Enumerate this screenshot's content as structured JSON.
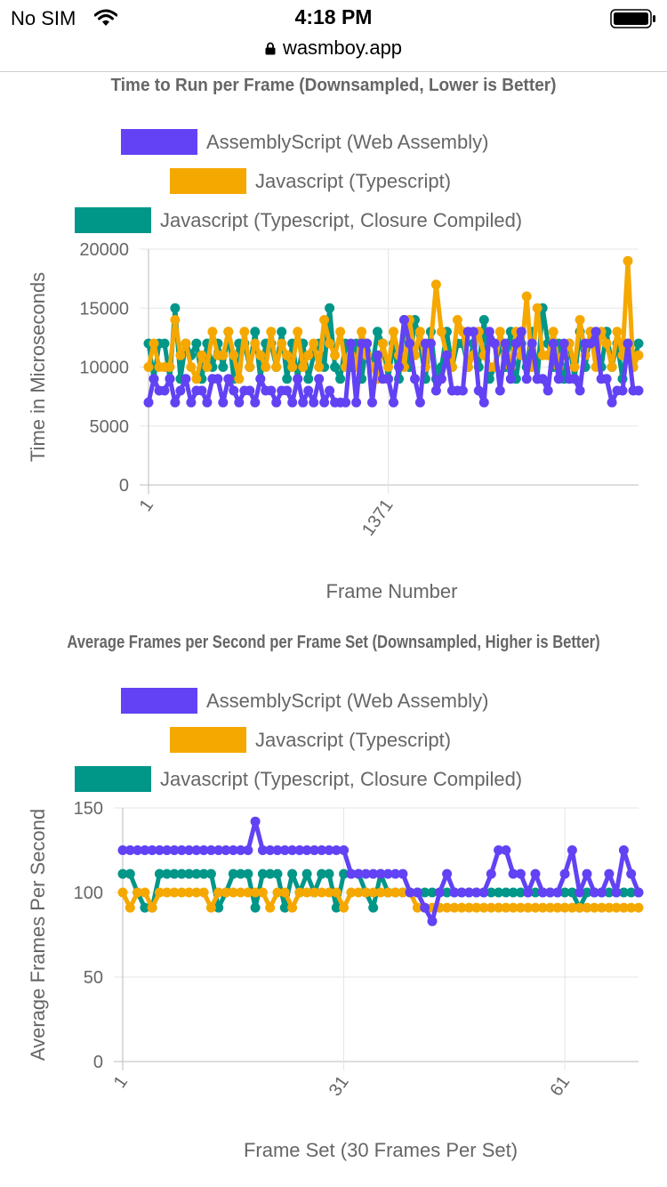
{
  "status_bar": {
    "carrier": "No SIM",
    "time": "4:18 PM",
    "url": "wasmboy.app",
    "icons": [
      "wifi-icon",
      "lock-icon",
      "battery-icon"
    ]
  },
  "colors": {
    "series": [
      "#6242f4",
      "#f5a800",
      "#009688"
    ],
    "grid": "#e5e5e5",
    "text": "#666666"
  },
  "chart_data": [
    {
      "type": "line",
      "title": "Time to Run per Frame (Downsampled, Lower is Better)",
      "xlabel": "Frame Number",
      "ylabel": "Time in Microseconds",
      "ylim": [
        0,
        20000
      ],
      "yticks": [
        0,
        5000,
        10000,
        15000,
        20000
      ],
      "x_tick_labels": [
        {
          "label": "1",
          "index": 0
        },
        {
          "label": "1371",
          "index": 45
        }
      ],
      "grid": true,
      "legend_position": "top",
      "series": [
        {
          "name": "AssemblyScript (Web Assembly)",
          "values": [
            7000,
            9000,
            8000,
            8000,
            9000,
            7000,
            8000,
            9000,
            7000,
            8000,
            8000,
            7000,
            9000,
            9000,
            7000,
            9000,
            8000,
            7000,
            8000,
            8000,
            7000,
            9000,
            8000,
            8000,
            7000,
            8000,
            8000,
            7000,
            9000,
            7000,
            8000,
            7000,
            9000,
            7000,
            8000,
            7000,
            7000,
            7000,
            12000,
            7000,
            12000,
            12000,
            7000,
            11000,
            9000,
            9000,
            7000,
            10000,
            14000,
            12000,
            9000,
            7000,
            12000,
            12000,
            8000,
            9000,
            11000,
            8000,
            8000,
            8000,
            13000,
            13000,
            8000,
            7000,
            13000,
            12000,
            8000,
            12000,
            9000,
            12000,
            13000,
            9000,
            12000,
            9000,
            9000,
            8000,
            12000,
            9000,
            12000,
            9000,
            9000,
            8000,
            12000,
            12000,
            13000,
            9000,
            9000,
            7000,
            8000,
            8000,
            12000,
            8000,
            8000
          ]
        },
        {
          "name": "Javascript (Typescript)",
          "values": [
            10000,
            12000,
            10000,
            10000,
            10000,
            14000,
            11000,
            12000,
            10000,
            9000,
            11000,
            10000,
            13000,
            11000,
            11000,
            13000,
            11000,
            9000,
            13000,
            10000,
            12000,
            11000,
            10000,
            13000,
            10000,
            12000,
            11000,
            10000,
            13000,
            10000,
            11000,
            12000,
            10000,
            14000,
            12000,
            11000,
            13000,
            10000,
            11000,
            10000,
            13000,
            11000,
            10000,
            9000,
            12000,
            10000,
            13000,
            11000,
            10000,
            14000,
            11000,
            13000,
            10000,
            12000,
            17000,
            13000,
            11000,
            10000,
            14000,
            13000,
            10000,
            11000,
            13000,
            11000,
            10000,
            10000,
            13000,
            11000,
            10000,
            13000,
            11000,
            16000,
            10000,
            15000,
            11000,
            11000,
            13000,
            10000,
            11000,
            12000,
            10000,
            14000,
            11000,
            13000,
            10000,
            13000,
            12000,
            10000,
            13000,
            11000,
            19000,
            10000,
            11000
          ]
        },
        {
          "name": "Javascript (Typescript, Closure Compiled)",
          "values": [
            12000,
            9000,
            12000,
            12000,
            9000,
            15000,
            9000,
            12000,
            11000,
            12000,
            9000,
            12000,
            10000,
            12000,
            10000,
            13000,
            9000,
            12000,
            12000,
            10000,
            13000,
            9000,
            12000,
            12000,
            10000,
            13000,
            9000,
            12000,
            9000,
            12000,
            9000,
            11000,
            12000,
            10000,
            15000,
            10000,
            9000,
            12000,
            10000,
            12000,
            9000,
            12000,
            10000,
            13000,
            12000,
            9000,
            12000,
            9000,
            14000,
            10000,
            14000,
            12000,
            9000,
            13000,
            9000,
            10000,
            13000,
            10000,
            12000,
            12000,
            10000,
            12000,
            10000,
            14000,
            9000,
            10000,
            12000,
            10000,
            13000,
            9000,
            12000,
            10000,
            13000,
            9000,
            15000,
            12000,
            10000,
            12000,
            9000,
            12000,
            9000,
            13000,
            10000,
            13000,
            12000,
            10000,
            13000,
            10000,
            12000,
            9000,
            12000,
            10000,
            12000
          ]
        }
      ]
    },
    {
      "type": "line",
      "title": "Average Frames per Second per Frame Set (Downsampled, Higher is Better)",
      "xlabel": "Frame Set (30 Frames Per Set)",
      "ylabel": "Average Frames Per Second",
      "ylim": [
        0,
        150
      ],
      "yticks": [
        0,
        50,
        100,
        150
      ],
      "x_tick_labels": [
        {
          "label": "1",
          "index": 0
        },
        {
          "label": "31",
          "index": 30
        },
        {
          "label": "61",
          "index": 60
        }
      ],
      "grid": true,
      "legend_position": "top",
      "series": [
        {
          "name": "AssemblyScript (Web Assembly)",
          "values": [
            125,
            125,
            125,
            125,
            125,
            125,
            125,
            125,
            125,
            125,
            125,
            125,
            125,
            125,
            125,
            125,
            125,
            125,
            142,
            125,
            125,
            125,
            125,
            125,
            125,
            125,
            125,
            125,
            125,
            125,
            125,
            111,
            111,
            111,
            111,
            111,
            111,
            111,
            111,
            100,
            100,
            91,
            83,
            100,
            111,
            100,
            100,
            100,
            100,
            100,
            111,
            125,
            125,
            111,
            111,
            100,
            111,
            100,
            100,
            100,
            111,
            125,
            100,
            111,
            100,
            100,
            111,
            100,
            125,
            111,
            100
          ]
        },
        {
          "name": "Javascript (Typescript)",
          "values": [
            100,
            91,
            100,
            100,
            91,
            100,
            100,
            100,
            100,
            100,
            100,
            100,
            91,
            100,
            100,
            100,
            100,
            100,
            100,
            100,
            91,
            100,
            100,
            91,
            100,
            100,
            100,
            100,
            100,
            100,
            91,
            100,
            100,
            100,
            100,
            100,
            100,
            100,
            100,
            100,
            91,
            91,
            91,
            91,
            91,
            91,
            91,
            91,
            91,
            91,
            91,
            91,
            91,
            91,
            91,
            91,
            91,
            91,
            91,
            91,
            91,
            91,
            91,
            91,
            91,
            91,
            91,
            91,
            91,
            91,
            91
          ]
        },
        {
          "name": "Javascript (Typescript, Closure Compiled)",
          "values": [
            111,
            111,
            100,
            91,
            91,
            111,
            111,
            111,
            111,
            111,
            111,
            111,
            111,
            91,
            100,
            111,
            111,
            111,
            91,
            111,
            111,
            111,
            91,
            111,
            100,
            111,
            100,
            111,
            111,
            91,
            111,
            111,
            111,
            100,
            91,
            111,
            100,
            100,
            100,
            100,
            100,
            100,
            100,
            100,
            100,
            100,
            100,
            100,
            100,
            100,
            100,
            100,
            100,
            100,
            100,
            100,
            100,
            100,
            100,
            100,
            100,
            100,
            91,
            100,
            100,
            100,
            100,
            100,
            100,
            100,
            100
          ]
        }
      ]
    }
  ]
}
